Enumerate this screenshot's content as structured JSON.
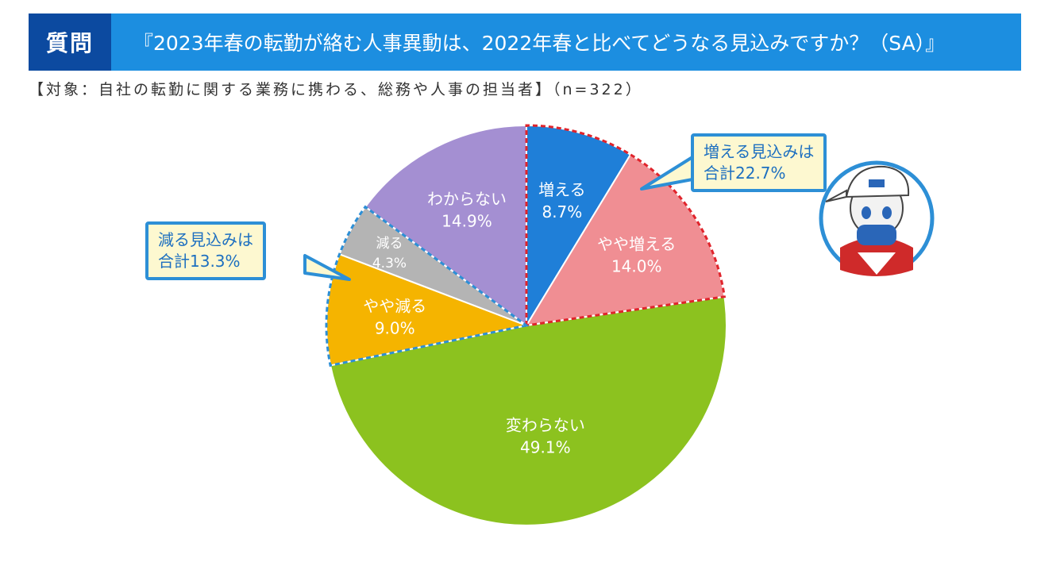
{
  "header": {
    "question_label": "質問",
    "question_text": "『2023年春の転勤が絡む人事異動は、2022年春と比べてどうなる見込みですか？（SA）』"
  },
  "subtitle": "【対象：自社の転勤に関する業務に携わる、総務や人事の担当者】（n=322）",
  "chart_data": {
    "type": "pie",
    "unit": "%",
    "slices": [
      {
        "label": "増える",
        "value": 8.7,
        "display": "8.7%",
        "color": "#1f7fd8",
        "label_color": "#ffffff",
        "group": "increase"
      },
      {
        "label": "やや増える",
        "value": 14.0,
        "display": "14.0%",
        "color": "#f08e93",
        "label_color": "#ffffff",
        "group": "increase"
      },
      {
        "label": "変わらない",
        "value": 49.1,
        "display": "49.1%",
        "color": "#8cc21f",
        "label_color": "#ffffff",
        "group": "none"
      },
      {
        "label": "やや減る",
        "value": 9.0,
        "display": "9.0%",
        "color": "#f5b400",
        "label_color": "#ffffff",
        "group": "decrease"
      },
      {
        "label": "減る",
        "value": 4.3,
        "display": "4.3%",
        "color": "#b4b4b4",
        "label_color": "#ffffff",
        "group": "decrease"
      },
      {
        "label": "わからない",
        "value": 14.9,
        "display": "14.9%",
        "color": "#a48fd2",
        "label_color": "#ffffff",
        "group": "none"
      }
    ],
    "callouts": [
      {
        "group": "increase",
        "line1": "増える見込みは",
        "line2": "合計22.7%",
        "outline_color": "#e0242c"
      },
      {
        "group": "decrease",
        "line1": "減る見込みは",
        "line2": "合計13.3%",
        "outline_color": "#2d8fd6"
      }
    ]
  }
}
